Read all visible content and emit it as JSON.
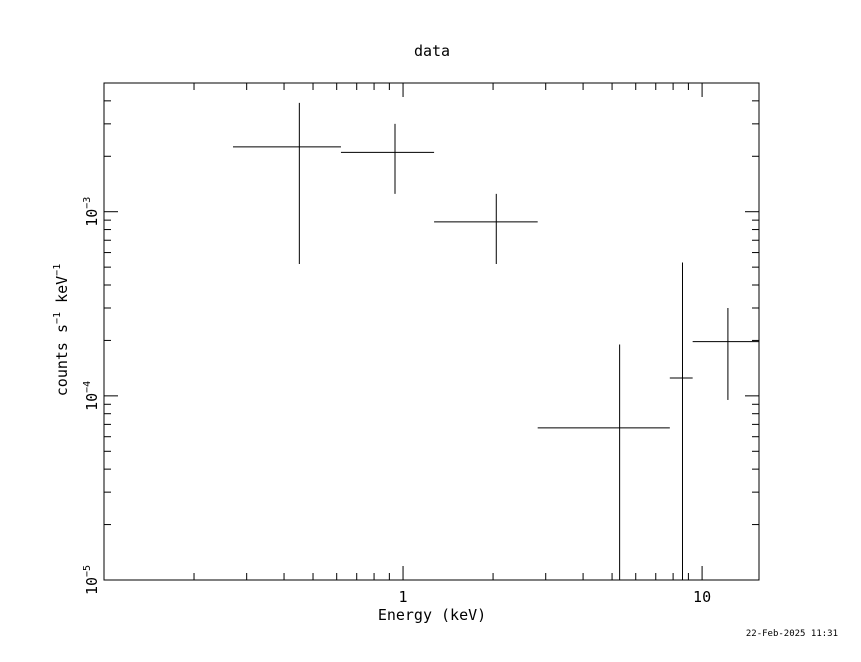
{
  "chart_data": {
    "type": "scatter",
    "title": "data",
    "xlabel": "Energy (keV)",
    "ylabel": {
      "base": "counts s",
      "exp1": "−1",
      "mid": " keV",
      "exp2": "−1"
    },
    "xscale": "log",
    "yscale": "log",
    "xlim": [
      0.1,
      15.5
    ],
    "ylim": [
      1e-05,
      0.005
    ],
    "x_ticks": [
      {
        "value": 1,
        "label": "1"
      },
      {
        "value": 10,
        "label": "10"
      }
    ],
    "y_ticks": [
      {
        "value": 1e-05,
        "base": "10",
        "exp": "−5"
      },
      {
        "value": 0.0001,
        "base": "10",
        "exp": "−4"
      },
      {
        "value": 0.001,
        "base": "10",
        "exp": "−3"
      }
    ],
    "grid": false,
    "legend": "none",
    "color": "#000000",
    "points": [
      {
        "x": 0.45,
        "xlo": 0.27,
        "xhi": 0.62,
        "y": 0.00225,
        "ylo": 0.00052,
        "yhi": 0.0039
      },
      {
        "x": 0.94,
        "xlo": 0.62,
        "xhi": 1.27,
        "y": 0.0021,
        "ylo": 0.00125,
        "yhi": 0.003
      },
      {
        "x": 2.05,
        "xlo": 1.27,
        "xhi": 2.82,
        "y": 0.00088,
        "ylo": 0.00052,
        "yhi": 0.00125
      },
      {
        "x": 5.3,
        "xlo": 2.82,
        "xhi": 7.8,
        "y": 6.7e-05,
        "ylo": 1e-05,
        "yhi": 0.00019
      },
      {
        "x": 8.6,
        "xlo": 7.8,
        "xhi": 9.3,
        "y": 0.000125,
        "ylo": 1e-05,
        "yhi": 0.00053
      },
      {
        "x": 12.2,
        "xlo": 9.3,
        "xhi": 15.5,
        "y": 0.000197,
        "ylo": 9.5e-05,
        "yhi": 0.0003
      }
    ]
  },
  "timestamp": "22-Feb-2025 11:31"
}
